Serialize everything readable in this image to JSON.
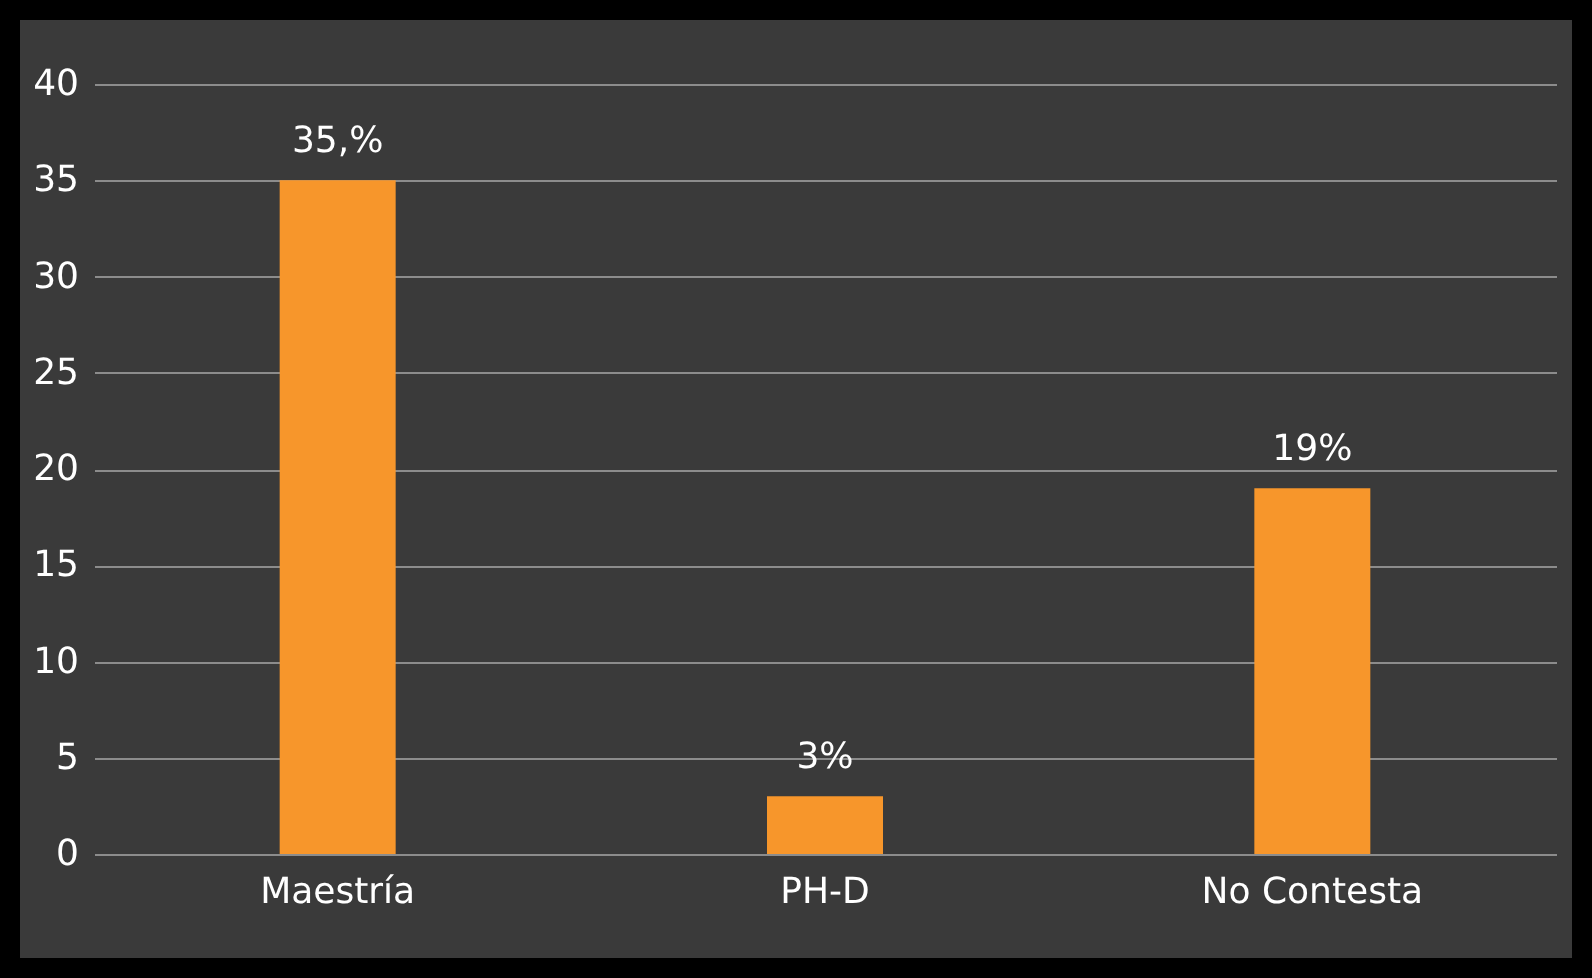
{
  "chart_data": {
    "type": "bar",
    "categories": [
      "Maestría",
      "PH-D",
      "No Contesta"
    ],
    "values": [
      35,
      3,
      19
    ],
    "value_labels": [
      "35,%",
      "3%",
      "19%"
    ],
    "color": "#f7962b",
    "ylim": [
      0,
      40
    ],
    "yticks": [
      0,
      5,
      10,
      15,
      20,
      25,
      30,
      35,
      40
    ],
    "grid": "y"
  }
}
